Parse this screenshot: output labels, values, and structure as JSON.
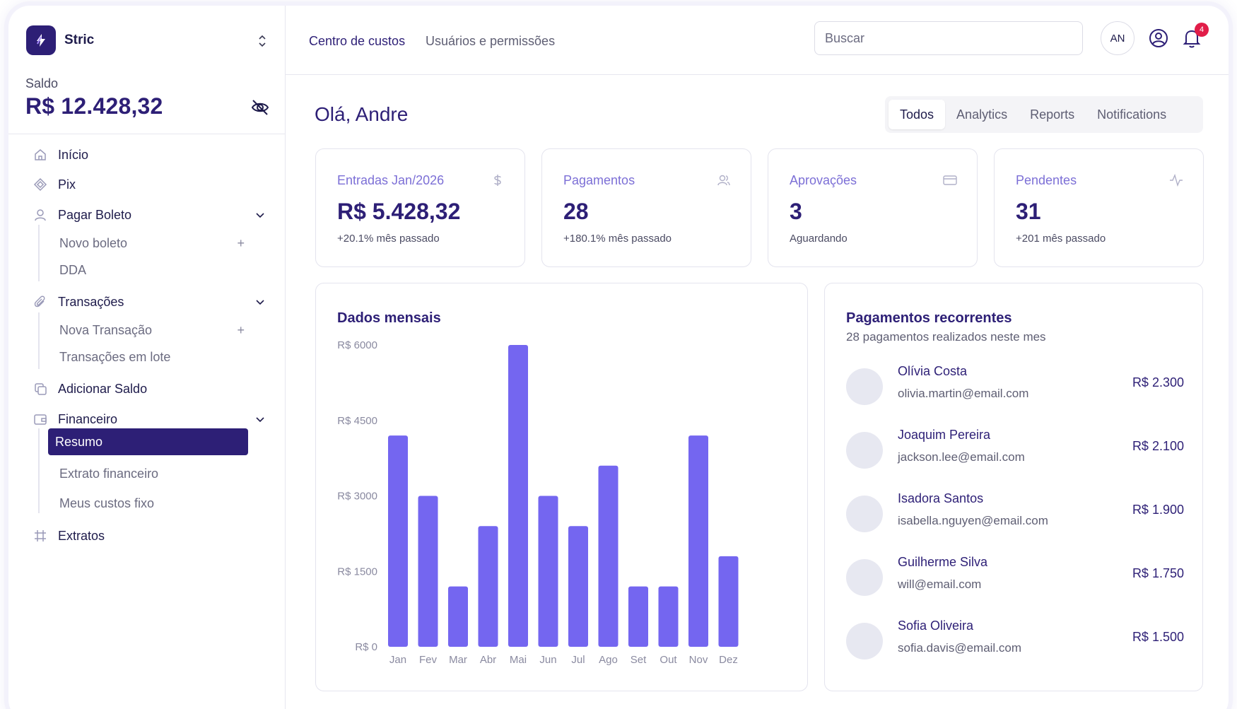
{
  "brand": {
    "name": "Stric"
  },
  "sidebar": {
    "saldo_label": "Saldo",
    "saldo_value": "R$ 12.428,32",
    "items": [
      {
        "label": "Início"
      },
      {
        "label": "Pix"
      },
      {
        "label": "Pagar Boleto",
        "children": [
          {
            "label": "Novo boleto"
          },
          {
            "label": "DDA"
          }
        ]
      },
      {
        "label": "Transações",
        "children": [
          {
            "label": "Nova Transação"
          },
          {
            "label": "Transações em lote"
          }
        ]
      },
      {
        "label": "Adicionar Saldo"
      },
      {
        "label": "Financeiro",
        "children": [
          {
            "label": "Resumo"
          },
          {
            "label": "Extrato financeiro"
          },
          {
            "label": "Meus custos fixo"
          }
        ]
      },
      {
        "label": "Extratos"
      }
    ],
    "plus_symbol": "+"
  },
  "topbar": {
    "links": [
      {
        "label": "Centro de custos"
      },
      {
        "label": "Usuários e permissões"
      }
    ],
    "search_placeholder": "Buscar",
    "avatar_initials": "AN",
    "notification_count": "4"
  },
  "main": {
    "greeting": "Olá, Andre",
    "tabs": [
      {
        "label": "Todos"
      },
      {
        "label": "Analytics"
      },
      {
        "label": "Reports"
      },
      {
        "label": "Notifications"
      }
    ],
    "stats": [
      {
        "title": "Entradas Jan/2026",
        "value": "R$ 5.428,32",
        "sub": "+20.1% mês passado",
        "icon": "dollar-icon"
      },
      {
        "title": "Pagamentos",
        "value": "28",
        "sub": "+180.1% mês passado",
        "icon": "users-icon"
      },
      {
        "title": "Aprovações",
        "value": "3",
        "sub": "Aguardando",
        "icon": "card-icon"
      },
      {
        "title": "Pendentes",
        "value": "31",
        "sub": "+201 mês passado",
        "icon": "activity-icon"
      }
    ]
  },
  "monthly": {
    "title": "Dados mensais"
  },
  "chart_data": {
    "type": "bar",
    "title": "Dados mensais",
    "categories": [
      "Jan",
      "Fev",
      "Mar",
      "Abr",
      "Mai",
      "Jun",
      "Jul",
      "Ago",
      "Set",
      "Out",
      "Nov",
      "Dez"
    ],
    "values": [
      4200,
      3000,
      1200,
      2400,
      6000,
      3000,
      2400,
      3600,
      1200,
      1200,
      4200,
      1800
    ],
    "ylim": [
      0,
      6000
    ],
    "yticks": [
      0,
      1500,
      3000,
      4500,
      6000
    ],
    "ytick_labels": [
      "R$ 0",
      "R$ 1500",
      "R$ 3000",
      "R$ 4500",
      "R$ 6000"
    ],
    "bar_color": "#7466f0",
    "grid": false
  },
  "recurring": {
    "title": "Pagamentos recorrentes",
    "subtitle": "28 pagamentos realizados neste mes",
    "rows": [
      {
        "name": "Olívia Costa",
        "email": "olivia.martin@email.com",
        "amount": "R$ 2.300"
      },
      {
        "name": "Joaquim Pereira",
        "email": "jackson.lee@email.com",
        "amount": "R$ 2.100"
      },
      {
        "name": "Isadora Santos",
        "email": "isabella.nguyen@email.com",
        "amount": "R$ 1.900"
      },
      {
        "name": "Guilherme Silva",
        "email": "will@email.com",
        "amount": "R$ 1.750"
      },
      {
        "name": "Sofia Oliveira",
        "email": "sofia.davis@email.com",
        "amount": "R$ 1.500"
      }
    ]
  },
  "colors": {
    "primary": "#2d1f76",
    "accent": "#7466f0",
    "badge": "#e11d48"
  }
}
